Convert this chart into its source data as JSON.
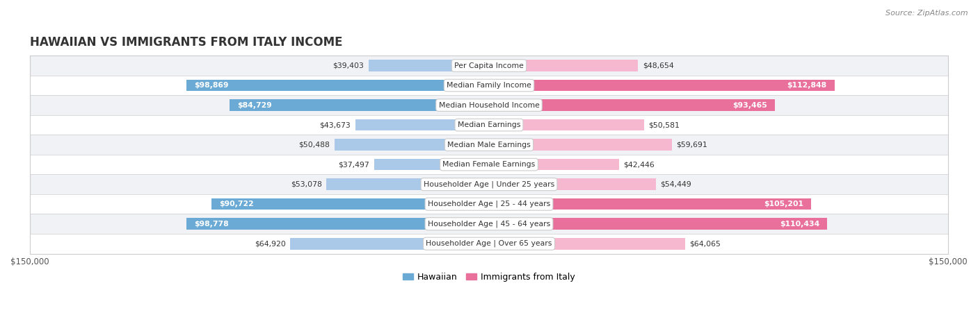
{
  "title": "HAWAIIAN VS IMMIGRANTS FROM ITALY INCOME",
  "source": "Source: ZipAtlas.com",
  "categories": [
    "Per Capita Income",
    "Median Family Income",
    "Median Household Income",
    "Median Earnings",
    "Median Male Earnings",
    "Median Female Earnings",
    "Householder Age | Under 25 years",
    "Householder Age | 25 - 44 years",
    "Householder Age | 45 - 64 years",
    "Householder Age | Over 65 years"
  ],
  "hawaiian_values": [
    39403,
    98869,
    84729,
    43673,
    50488,
    37497,
    53078,
    90722,
    98778,
    64920
  ],
  "italy_values": [
    48654,
    112848,
    93465,
    50581,
    59691,
    42446,
    54449,
    105201,
    110434,
    64065
  ],
  "hawaiian_labels": [
    "$39,403",
    "$98,869",
    "$84,729",
    "$43,673",
    "$50,488",
    "$37,497",
    "$53,078",
    "$90,722",
    "$98,778",
    "$64,920"
  ],
  "italy_labels": [
    "$48,654",
    "$112,848",
    "$93,465",
    "$50,581",
    "$59,691",
    "$42,446",
    "$54,449",
    "$105,201",
    "$110,434",
    "$64,065"
  ],
  "hawaiian_color_light": "#aac9e8",
  "hawaiian_color_dark": "#6aaad4",
  "italy_color_light": "#f5b8ce",
  "italy_color_dark": "#e8709a",
  "max_value": 150000,
  "background_color": "#ffffff",
  "row_bg_even": "#f0f2f5",
  "row_bg_odd": "#ffffff",
  "bar_height": 0.58,
  "inside_label_threshold": 65000,
  "legend_hawaiian": "Hawaiian",
  "legend_italy": "Immigrants from Italy"
}
